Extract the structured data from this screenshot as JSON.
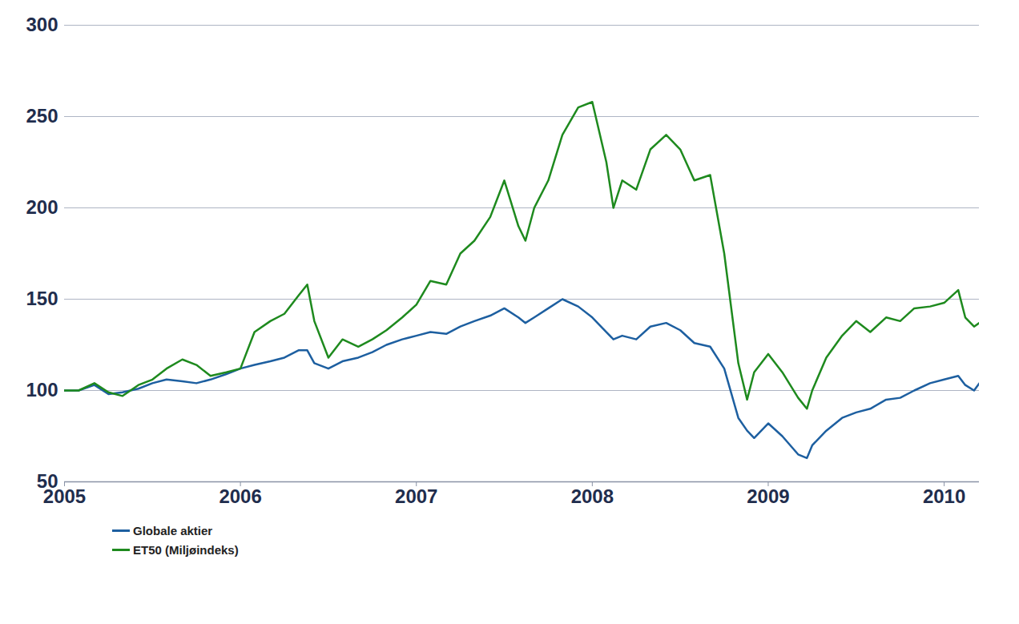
{
  "chart_data": {
    "type": "line",
    "x": [
      2005.0,
      2005.08,
      2005.17,
      2005.25,
      2005.33,
      2005.42,
      2005.5,
      2005.58,
      2005.67,
      2005.75,
      2005.83,
      2005.92,
      2006.0,
      2006.08,
      2006.17,
      2006.25,
      2006.33,
      2006.38,
      2006.42,
      2006.5,
      2006.58,
      2006.67,
      2006.75,
      2006.83,
      2006.92,
      2007.0,
      2007.08,
      2007.17,
      2007.25,
      2007.33,
      2007.42,
      2007.5,
      2007.58,
      2007.62,
      2007.67,
      2007.75,
      2007.83,
      2007.92,
      2008.0,
      2008.08,
      2008.12,
      2008.17,
      2008.25,
      2008.33,
      2008.42,
      2008.5,
      2008.58,
      2008.67,
      2008.75,
      2008.83,
      2008.88,
      2008.92,
      2009.0,
      2009.08,
      2009.17,
      2009.22,
      2009.25,
      2009.33,
      2009.42,
      2009.5,
      2009.58,
      2009.67,
      2009.75,
      2009.83,
      2009.92,
      2010.0,
      2010.08,
      2010.12,
      2010.17,
      2010.2
    ],
    "series": [
      {
        "name": "Globale aktier",
        "color": "#1d5fa0",
        "values": [
          100,
          100,
          103,
          98,
          99,
          101,
          104,
          106,
          105,
          104,
          106,
          109,
          112,
          114,
          116,
          118,
          122,
          122,
          115,
          112,
          116,
          118,
          121,
          125,
          128,
          130,
          132,
          131,
          135,
          138,
          141,
          145,
          140,
          137,
          140,
          145,
          150,
          146,
          140,
          132,
          128,
          130,
          128,
          135,
          137,
          133,
          126,
          124,
          112,
          85,
          78,
          74,
          82,
          75,
          65,
          63,
          70,
          78,
          85,
          88,
          90,
          95,
          96,
          100,
          104,
          106,
          108,
          103,
          100,
          104
        ]
      },
      {
        "name": "ET50 (Miljøindeks)",
        "color": "#1e8a1e",
        "values": [
          100,
          100,
          104,
          99,
          97,
          103,
          106,
          112,
          117,
          114,
          108,
          110,
          112,
          132,
          138,
          142,
          152,
          158,
          138,
          118,
          128,
          124,
          128,
          133,
          140,
          147,
          160,
          158,
          175,
          182,
          195,
          215,
          190,
          182,
          200,
          215,
          240,
          255,
          258,
          225,
          200,
          215,
          210,
          232,
          240,
          232,
          215,
          218,
          175,
          115,
          95,
          110,
          120,
          110,
          96,
          90,
          100,
          118,
          130,
          138,
          132,
          140,
          138,
          145,
          146,
          148,
          155,
          140,
          135,
          137
        ]
      }
    ],
    "xlim": [
      2005,
      2010.2
    ],
    "xticks": [
      2005,
      2006,
      2007,
      2008,
      2009,
      2010
    ],
    "ylim": [
      50,
      300
    ],
    "yticks": [
      50,
      100,
      150,
      200,
      250,
      300
    ],
    "grid": true,
    "legend": "bottom-left"
  }
}
